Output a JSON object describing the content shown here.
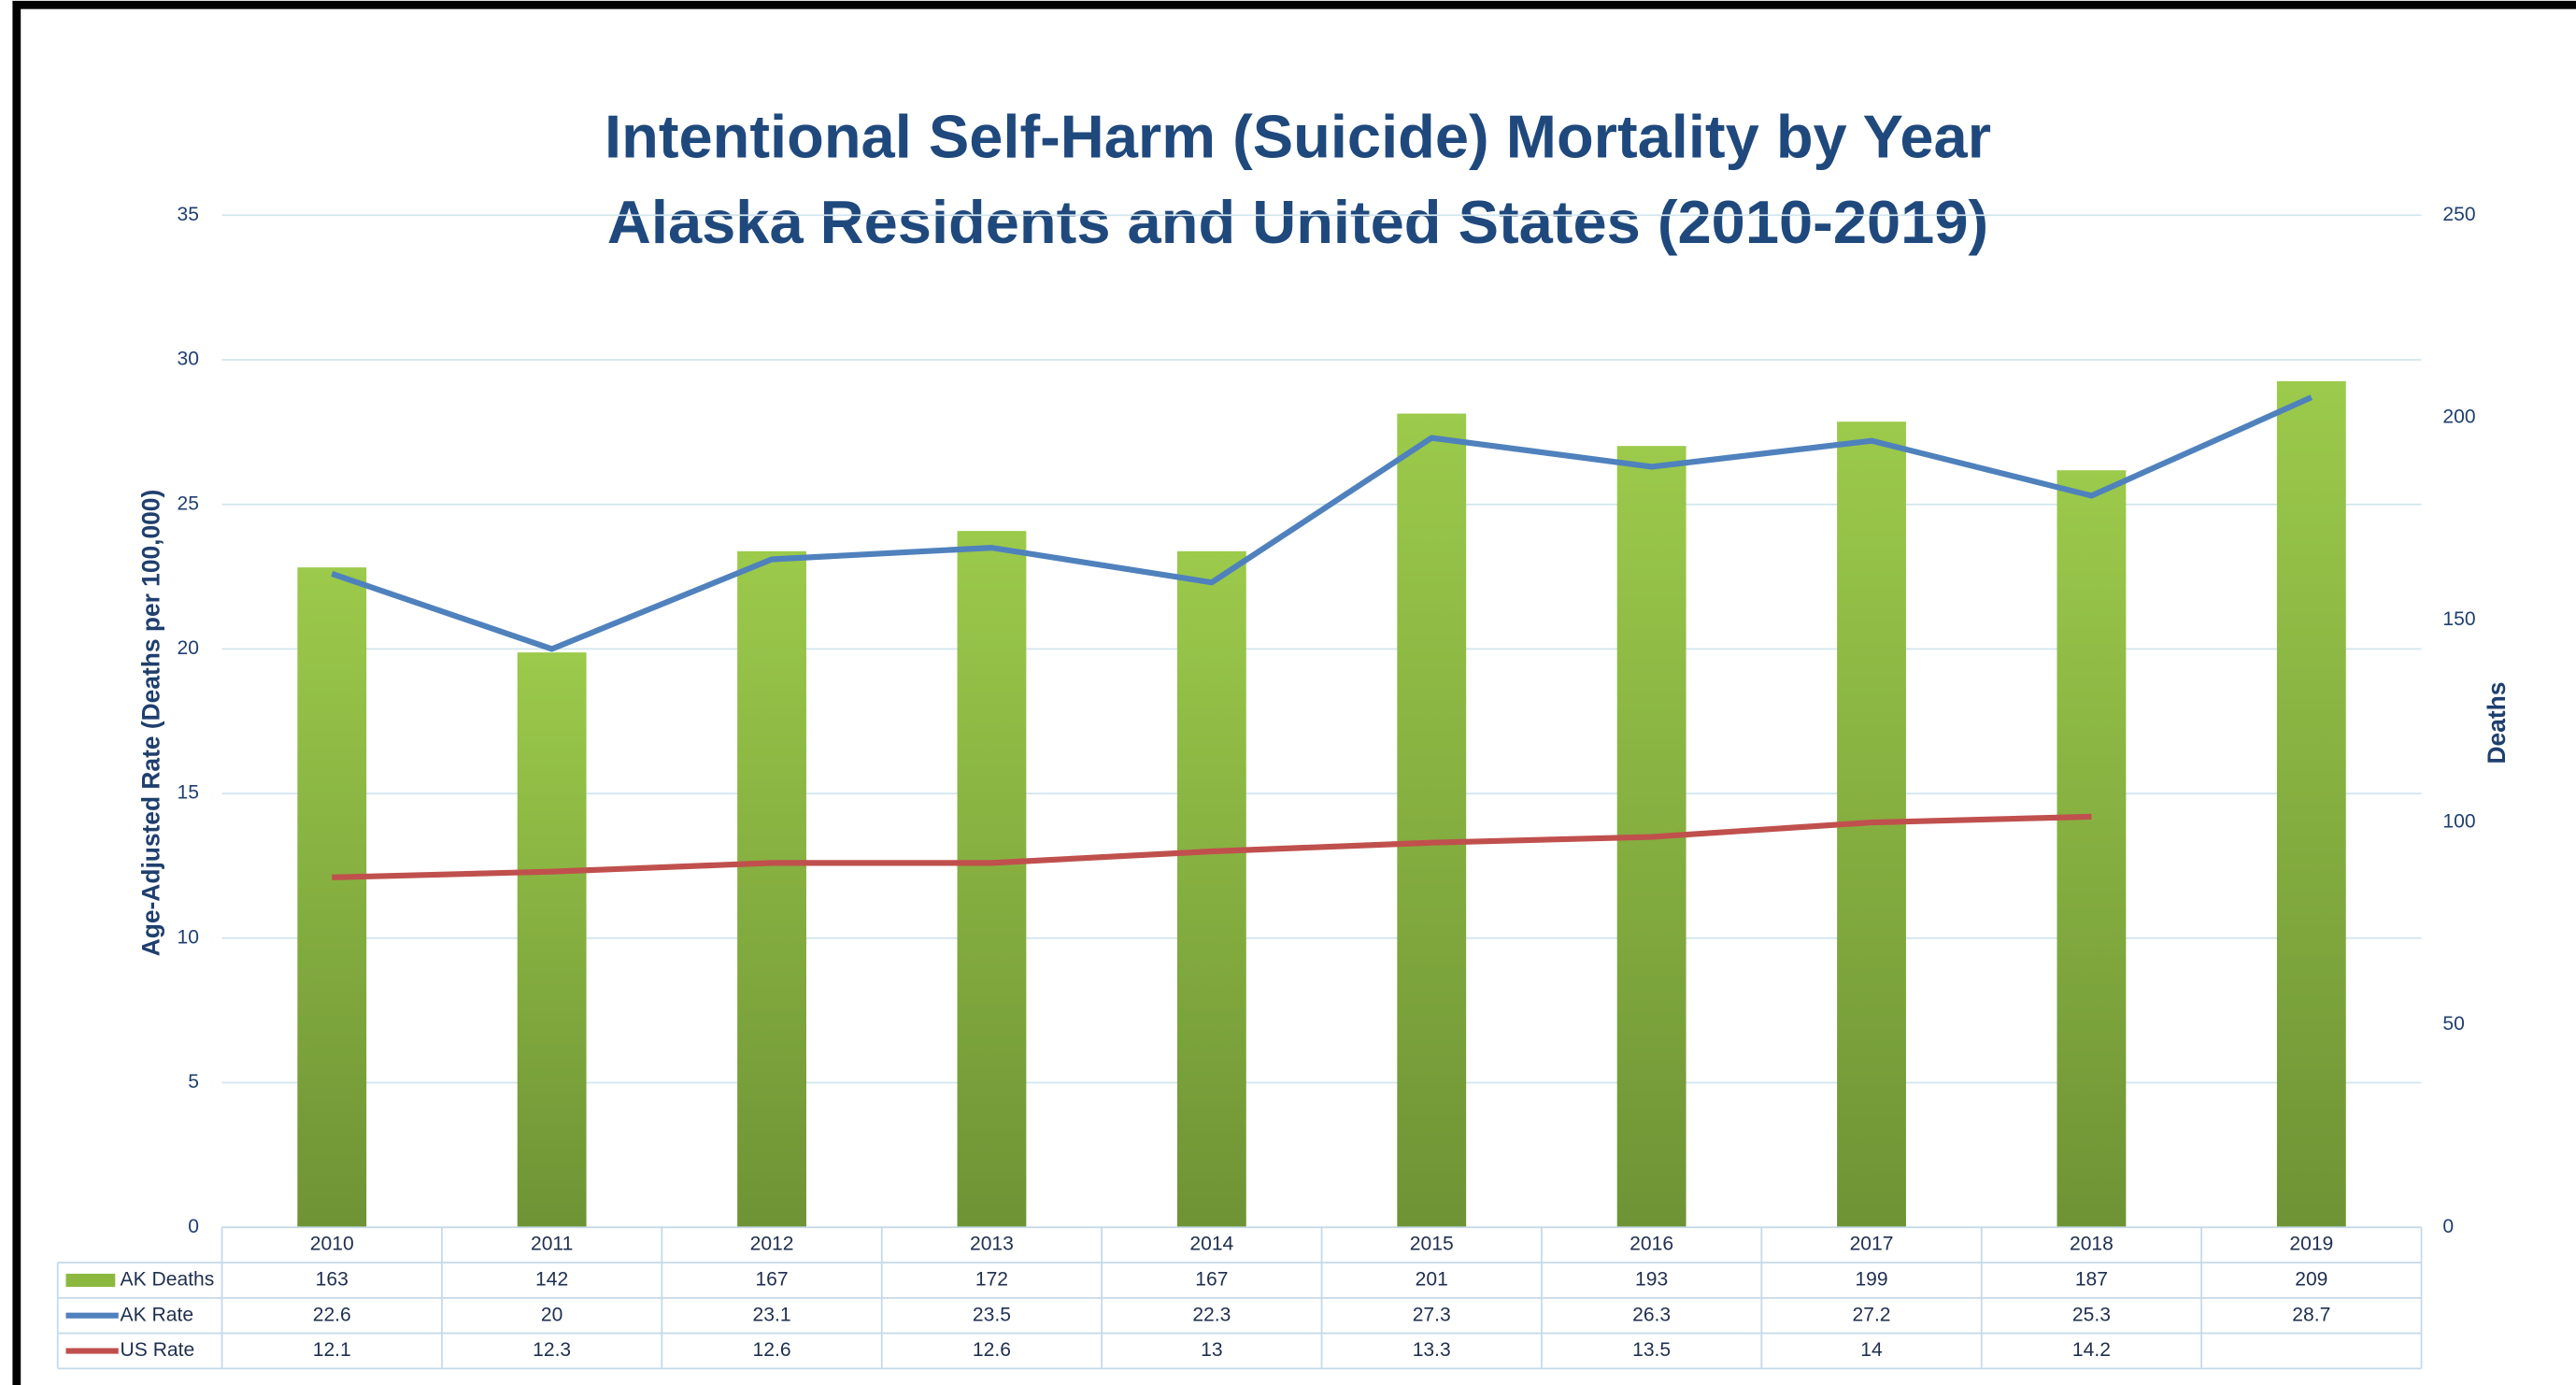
{
  "chart_data": {
    "type": "combo",
    "title": [
      "Intentional Self-Harm (Suicide) Mortality by Year",
      "Alaska Residents and United States (2010-2019)"
    ],
    "ylabel": "Age-Adjusted Rate (Deaths per 100,000)",
    "y2label": "Deaths",
    "categories": [
      "2010",
      "2011",
      "2012",
      "2013",
      "2014",
      "2015",
      "2016",
      "2017",
      "2018",
      "2019"
    ],
    "series": [
      {
        "name": "AK Deaths",
        "type": "bar",
        "axis": "y2",
        "color": "#8cb840",
        "values": [
          163,
          142,
          167,
          172,
          167,
          201,
          193,
          199,
          187,
          209
        ]
      },
      {
        "name": "AK Rate",
        "type": "line",
        "axis": "y",
        "color": "#4f81bd",
        "values": [
          22.6,
          20,
          23.1,
          23.5,
          22.3,
          27.3,
          26.3,
          27.2,
          25.3,
          28.7
        ]
      },
      {
        "name": "US Rate",
        "type": "line",
        "axis": "y",
        "color": "#c0504d",
        "values": [
          12.1,
          12.3,
          12.6,
          12.6,
          13,
          13.3,
          13.5,
          14,
          14.2,
          null
        ]
      }
    ],
    "ylim": [
      0,
      35
    ],
    "yticks": [
      0,
      5,
      10,
      15,
      20,
      25,
      30,
      35
    ],
    "y2lim": [
      0,
      250
    ],
    "y2ticks": [
      0,
      50,
      100,
      150,
      200,
      250
    ],
    "grid": true
  }
}
